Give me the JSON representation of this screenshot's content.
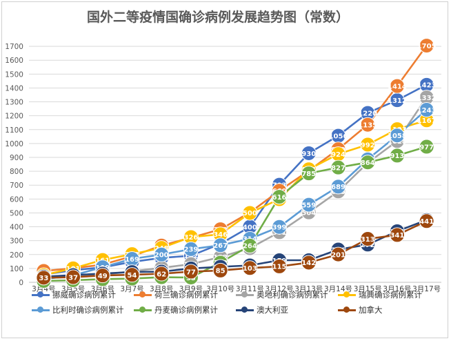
{
  "chart_data": {
    "type": "line",
    "title": "国外二等疫情国确诊病例发展趋势图（常数）",
    "xlabel": "",
    "ylabel": "",
    "ylim": [
      0,
      1800
    ],
    "yticks": [
      0,
      100,
      200,
      300,
      400,
      500,
      600,
      700,
      800,
      900,
      1000,
      1100,
      1200,
      1300,
      1400,
      1500,
      1600,
      1700
    ],
    "grid": true,
    "legend_position": "bottom",
    "categories": [
      "3月4号",
      "3月5号",
      "3月6号",
      "3月7号",
      "3月8号",
      "3月9号",
      "3月10号",
      "3月11号",
      "3月12号",
      "3月13号",
      "3月14号",
      "3月15号",
      "3月16号",
      "3月17号"
    ],
    "series": [
      {
        "name": "挪威确诊病例累计",
        "color": "#4472c4",
        "values": [
          56,
          87,
          108,
          147,
          176,
          192,
          277,
          400,
          703,
          930,
          1056,
          1220,
          1312,
          1423
        ]
      },
      {
        "name": "荷兰确诊病例累计",
        "color": "#ed7d31",
        "values": [
          82,
          101,
          128,
          188,
          265,
          321,
          382,
          503,
          660,
          804,
          959,
          1135,
          1414,
          1705
        ]
      },
      {
        "name": "奥地利确诊病例累计",
        "color": "#a5a5a5",
        "values": [
          29,
          41,
          55,
          79,
          104,
          131,
          182,
          246,
          361,
          504,
          655,
          860,
          1018,
          1332
        ]
      },
      {
        "name": "瑞典确诊病例累计",
        "color": "#ffc000",
        "values": [
          52,
          101,
          161,
          203,
          248,
          326,
          346,
          500,
          599,
          814,
          924,
          992,
          1103,
          1167
        ]
      },
      {
        "name": "比利时确诊病例累计",
        "color": "#5b9bd5",
        "values": [
          23,
          50,
          109,
          169,
          200,
          239,
          267,
          314,
          399,
          559,
          689,
          886,
          1058,
          1243
        ]
      },
      {
        "name": "丹麦确诊病例累计",
        "color": "#70ad47",
        "values": [
          10,
          15,
          23,
          27,
          37,
          35,
          142,
          264,
          616,
          785,
          827,
          864,
          913,
          977
        ]
      },
      {
        "name": "澳大利亚",
        "color": "#264478",
        "values": [
          41,
          52,
          63,
          74,
          77,
          100,
          112,
          122,
          159,
          159,
          236,
          272,
          368,
          449
        ]
      },
      {
        "name": "加拿大",
        "color": "#9e480e",
        "values": [
          33,
          37,
          49,
          54,
          62,
          77,
          85,
          103,
          115,
          142,
          201,
          313,
          341,
          441
        ]
      }
    ]
  }
}
